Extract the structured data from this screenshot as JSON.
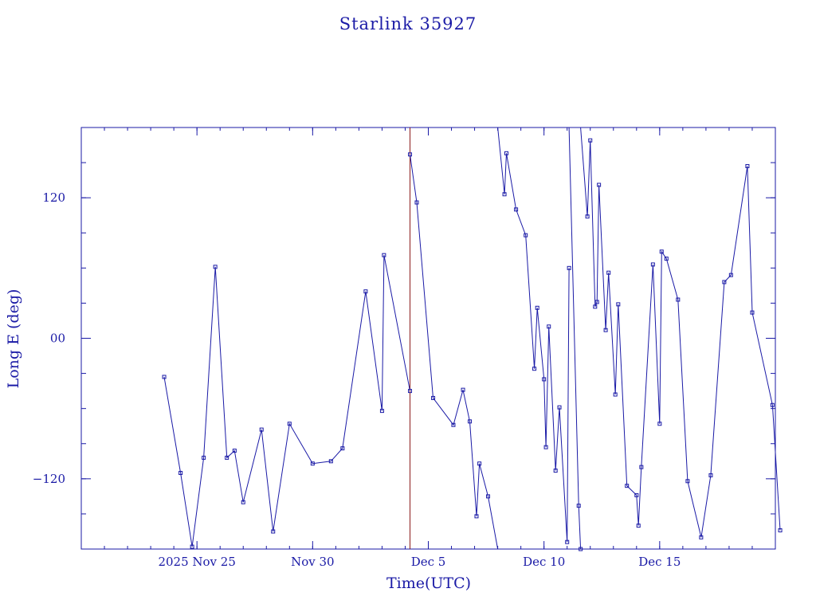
{
  "chart_data": {
    "type": "line",
    "title": "Starlink 35927",
    "xlabel": "Time(UTC)",
    "ylabel": "Long E (deg)",
    "x_unit": "date (2025, UTC)",
    "xlim": [
      "2025-11-20T00:00",
      "2025-12-20T00:00"
    ],
    "ylim": [
      -180,
      180
    ],
    "x_ticks": [
      {
        "date": "2025-11-25",
        "label": "2025 Nov 25"
      },
      {
        "date": "2025-11-30",
        "label": "Nov 30"
      },
      {
        "date": "2025-12-05",
        "label": "Dec  5"
      },
      {
        "date": "2025-12-10",
        "label": "Dec 10"
      },
      {
        "date": "2025-12-15",
        "label": "Dec 15"
      }
    ],
    "y_ticks": [
      {
        "value": 120,
        "label": "120"
      },
      {
        "value": 0,
        "label": "00"
      },
      {
        "value": -120,
        "label": "−120"
      }
    ],
    "grid": false,
    "series": [
      {
        "points": [
          [
            "2025-11-23T14:00",
            -33
          ],
          [
            "2025-11-24T07:00",
            -115
          ],
          [
            "2025-11-24T19:00",
            -178
          ],
          [
            "2025-11-25T07:00",
            -102
          ],
          [
            "2025-11-25T19:00",
            61
          ],
          [
            "2025-11-26T07:00",
            -102
          ],
          [
            "2025-11-26T15:00",
            -96
          ],
          [
            "2025-11-27T00:00",
            -140
          ],
          [
            "2025-11-27T19:00",
            -78
          ],
          [
            "2025-11-28T07:00",
            -165
          ],
          [
            "2025-11-29T00:00",
            -73
          ],
          [
            "2025-11-30T00:00",
            -107
          ],
          [
            "2025-11-30T19:00",
            -105
          ],
          [
            "2025-12-01T07:00",
            -94
          ],
          [
            "2025-12-02T07:00",
            40
          ],
          [
            "2025-12-03T00:00",
            -62
          ],
          [
            "2025-12-03T02:00",
            71
          ],
          [
            "2025-12-04T05:00",
            -45
          ]
        ]
      },
      {
        "points": [
          [
            "2025-12-04T05:00",
            157
          ],
          [
            "2025-12-04T12:00",
            116
          ],
          [
            "2025-12-05T05:00",
            -51
          ],
          [
            "2025-12-06T02:00",
            -74
          ],
          [
            "2025-12-06T12:00",
            -44
          ],
          [
            "2025-12-06T19:00",
            -71
          ],
          [
            "2025-12-07T02:00",
            -152
          ],
          [
            "2025-12-07T05:00",
            -107
          ],
          [
            "2025-12-07T14:00",
            -135
          ],
          [
            "2025-12-08T00:00",
            -190
          ]
        ]
      },
      {
        "points": [
          [
            "2025-12-08T00:00",
            185
          ],
          [
            "2025-12-08T07:00",
            123
          ],
          [
            "2025-12-08T09:00",
            158
          ],
          [
            "2025-12-08T19:00",
            110
          ],
          [
            "2025-12-09T05:00",
            88
          ],
          [
            "2025-12-09T14:00",
            -26
          ],
          [
            "2025-12-09T17:00",
            26
          ],
          [
            "2025-12-10T00:00",
            -35
          ],
          [
            "2025-12-10T02:00",
            -93
          ],
          [
            "2025-12-10T05:00",
            10
          ],
          [
            "2025-12-10T12:00",
            -113
          ],
          [
            "2025-12-10T16:00",
            -59
          ],
          [
            "2025-12-11T00:00",
            -174
          ],
          [
            "2025-12-11T02:00",
            60
          ]
        ]
      },
      {
        "points": [
          [
            "2025-12-11T02:00",
            190
          ],
          [
            "2025-12-11T12:00",
            -143
          ],
          [
            "2025-12-11T14:00",
            -180
          ]
        ]
      },
      {
        "points": [
          [
            "2025-12-11T14:00",
            185
          ],
          [
            "2025-12-11T21:00",
            104
          ],
          [
            "2025-12-12T00:00",
            169
          ],
          [
            "2025-12-12T05:00",
            27
          ],
          [
            "2025-12-12T07:00",
            31
          ],
          [
            "2025-12-12T09:00",
            131
          ],
          [
            "2025-12-12T16:00",
            7
          ],
          [
            "2025-12-12T19:00",
            56
          ],
          [
            "2025-12-13T02:00",
            -48
          ],
          [
            "2025-12-13T05:00",
            29
          ],
          [
            "2025-12-13T14:00",
            -126
          ],
          [
            "2025-12-14T00:00",
            -134
          ],
          [
            "2025-12-14T02:00",
            -160
          ],
          [
            "2025-12-14T05:00",
            -110
          ],
          [
            "2025-12-14T17:00",
            63
          ],
          [
            "2025-12-15T00:00",
            -73
          ],
          [
            "2025-12-15T02:00",
            74
          ],
          [
            "2025-12-15T07:00",
            68
          ],
          [
            "2025-12-15T19:00",
            33
          ],
          [
            "2025-12-16T05:00",
            -122
          ],
          [
            "2025-12-16T19:00",
            -170
          ],
          [
            "2025-12-17T05:00",
            -117
          ],
          [
            "2025-12-17T19:00",
            48
          ],
          [
            "2025-12-18T02:00",
            54
          ],
          [
            "2025-12-18T19:00",
            147
          ],
          [
            "2025-12-19T00:00",
            22
          ],
          [
            "2025-12-19T21:00",
            -57
          ],
          [
            "2025-12-20T05:00",
            -164
          ]
        ]
      }
    ]
  }
}
